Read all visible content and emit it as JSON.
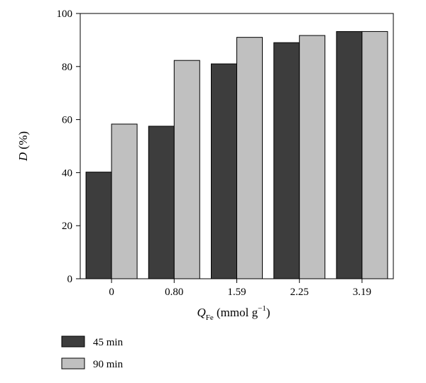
{
  "chart_data": {
    "type": "bar",
    "categories": [
      "0",
      "0.80",
      "1.59",
      "2.25",
      "3.19"
    ],
    "series": [
      {
        "name": "45 min",
        "values": [
          40.2,
          57.5,
          81.0,
          89.0,
          93.2
        ],
        "color": "#3d3d3d"
      },
      {
        "name": "90 min",
        "values": [
          58.3,
          82.3,
          91.0,
          91.7,
          93.2
        ],
        "color": "#c0c0c0"
      }
    ],
    "ylabel": {
      "italic": "D",
      "rest": " (%)"
    },
    "xlabel": {
      "main": "Q",
      "sub": "Fe",
      "unit": " (mmol g",
      "sup": "−1",
      "close": ")"
    },
    "ylim": [
      0,
      100
    ],
    "yticks": [
      0,
      20,
      40,
      60,
      80,
      100
    ],
    "grid": false,
    "legend_position": "bottom-left"
  }
}
